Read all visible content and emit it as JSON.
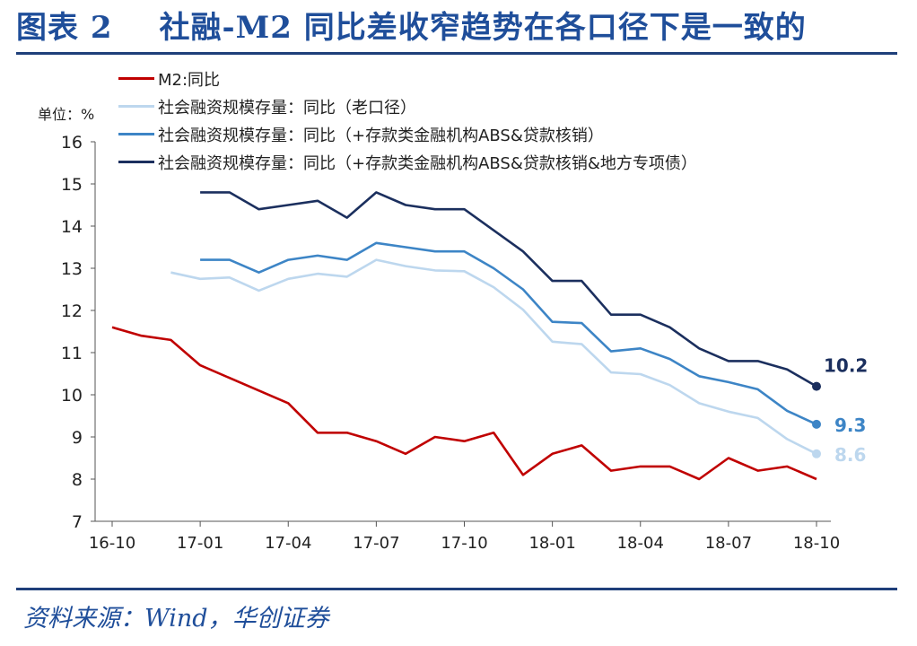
{
  "title": {
    "figure": "图表 2",
    "text": "社融-M2 同比差收窄趋势在各口径下是一致的"
  },
  "source": "资料来源：Wind，华创证券",
  "chart_data": {
    "type": "line",
    "title": "社融-M2 同比差收窄趋势在各口径下是一致的",
    "ylabel": "单位：%",
    "unit_label": "单位：%",
    "ylim": [
      7,
      16
    ],
    "yticks": [
      7,
      8,
      9,
      10,
      11,
      12,
      13,
      14,
      15,
      16
    ],
    "x_tick_labels": [
      "16-10",
      "17-01",
      "17-04",
      "17-07",
      "17-10",
      "18-01",
      "18-04",
      "18-07",
      "18-10"
    ],
    "x_tick_index": [
      0,
      3,
      6,
      9,
      12,
      15,
      18,
      21,
      24
    ],
    "x": [
      "16-10",
      "16-11",
      "16-12",
      "17-01",
      "17-02",
      "17-03",
      "17-04",
      "17-05",
      "17-06",
      "17-07",
      "17-08",
      "17-09",
      "17-10",
      "17-11",
      "17-12",
      "18-01",
      "18-02",
      "18-03",
      "18-04",
      "18-05",
      "18-06",
      "18-07",
      "18-08",
      "18-09",
      "18-10"
    ],
    "legend_position": "top-left",
    "series": [
      {
        "name": "M2:同比",
        "color": "#c00000",
        "values": [
          11.6,
          11.4,
          11.3,
          10.7,
          10.4,
          10.1,
          9.8,
          9.1,
          9.1,
          8.9,
          8.6,
          9.0,
          8.9,
          9.1,
          8.1,
          8.6,
          8.8,
          8.2,
          8.3,
          8.3,
          8.0,
          8.5,
          8.2,
          8.3,
          8.0
        ]
      },
      {
        "name": "社会融资规模存量：同比（老口径）",
        "color": "#bdd7ee",
        "values": [
          null,
          null,
          12.9,
          12.75,
          12.78,
          12.47,
          12.75,
          12.87,
          12.8,
          13.2,
          13.05,
          12.95,
          12.93,
          12.55,
          12.02,
          11.26,
          11.2,
          10.53,
          10.49,
          10.23,
          9.8,
          9.6,
          9.45,
          8.95,
          8.6
        ]
      },
      {
        "name": "社会融资规模存量：同比（+存款类金融机构ABS&贷款核销）",
        "color": "#3d85c6",
        "values": [
          null,
          null,
          null,
          13.2,
          13.2,
          12.9,
          13.2,
          13.3,
          13.2,
          13.6,
          13.5,
          13.4,
          13.4,
          13.0,
          12.5,
          11.73,
          11.7,
          11.03,
          11.1,
          10.85,
          10.44,
          10.3,
          10.13,
          9.62,
          9.3
        ]
      },
      {
        "name": "社会融资规模存量：同比（+存款类金融机构ABS&贷款核销&地方专项债）",
        "color": "#1b2f5e",
        "values": [
          null,
          null,
          null,
          14.8,
          14.8,
          14.4,
          14.5,
          14.6,
          14.2,
          14.8,
          14.5,
          14.4,
          14.4,
          13.9,
          13.4,
          12.7,
          12.7,
          11.9,
          11.9,
          11.6,
          11.1,
          10.8,
          10.8,
          10.6,
          10.2
        ]
      }
    ],
    "end_labels": [
      "",
      "8.6",
      "9.3",
      "10.2"
    ]
  }
}
